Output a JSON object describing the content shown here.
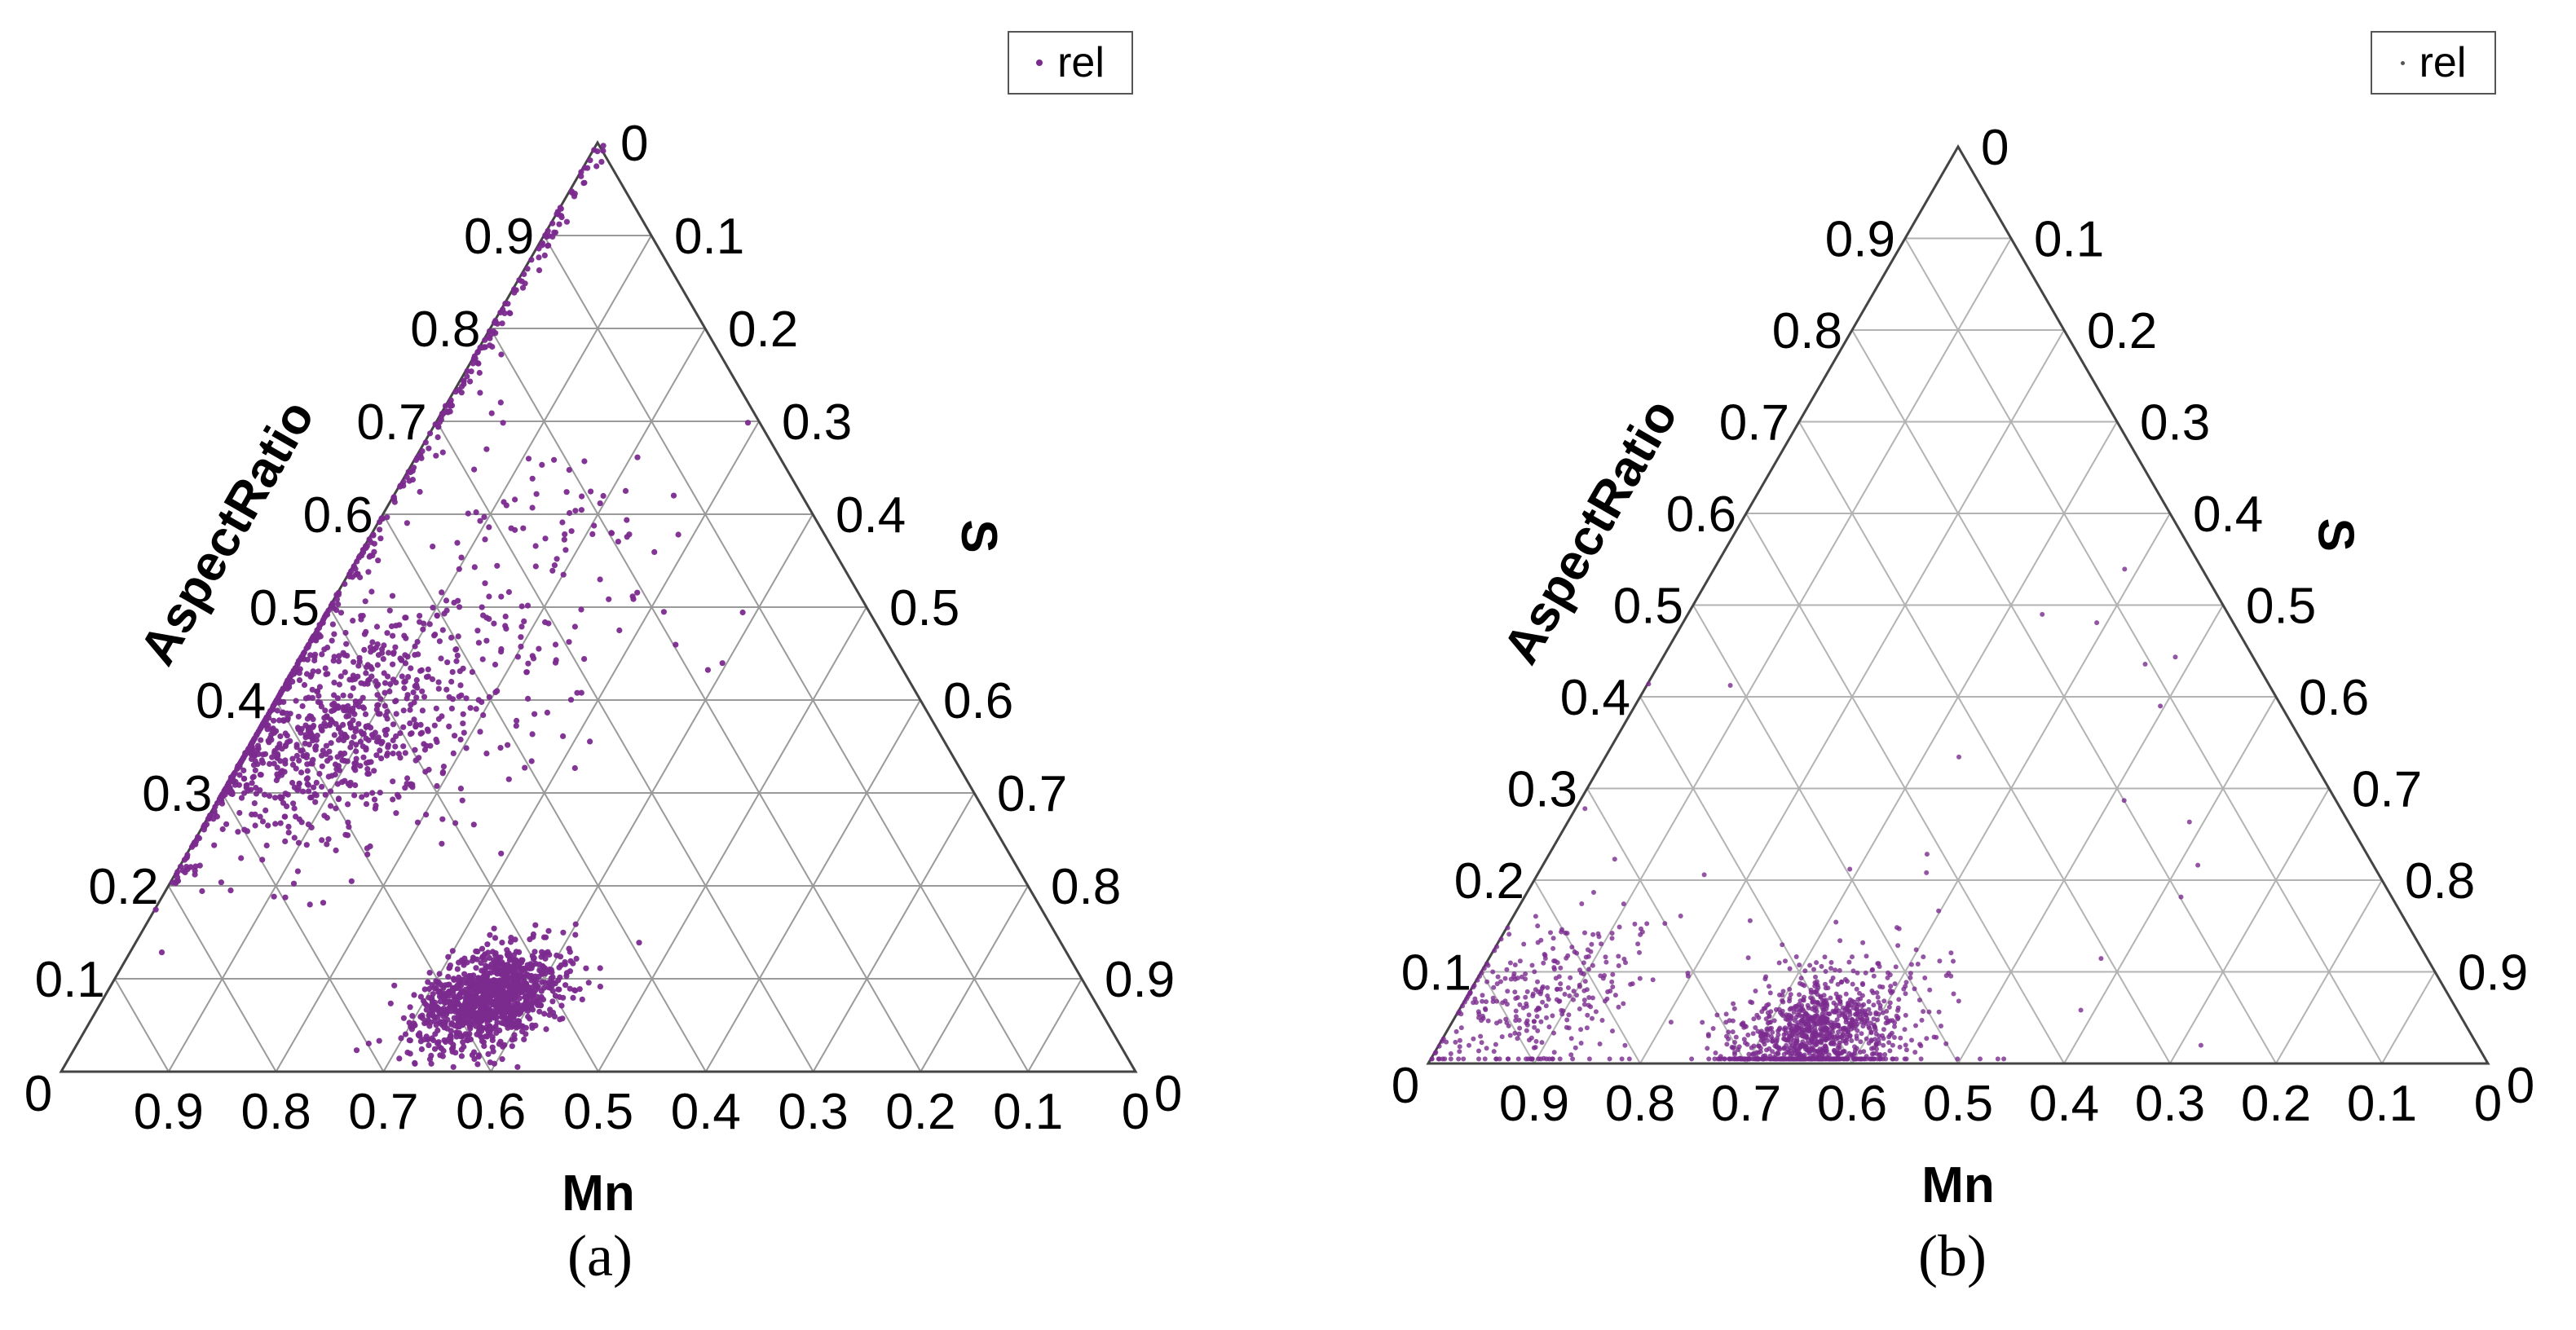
{
  "chart_data": [
    {
      "type": "scatter",
      "subtype": "ternary",
      "panel_label": "(a)",
      "legend": [
        "rel"
      ],
      "series": [
        {
          "name": "rel",
          "color": "#7b2a8e"
        }
      ],
      "axes": {
        "Mn": {
          "label": "Mn",
          "ticks": [
            "0.9",
            "0.8",
            "0.7",
            "0.6",
            "0.5",
            "0.4",
            "0.3",
            "0.2",
            "0.1",
            "0"
          ]
        },
        "S": {
          "label": "S",
          "ticks": [
            "0",
            "0.1",
            "0.2",
            "0.3",
            "0.4",
            "0.5",
            "0.6",
            "0.7",
            "0.8",
            "0.9"
          ]
        },
        "AspectRatio": {
          "label": "AspectRatio",
          "ticks": [
            "0",
            "0.1",
            "0.2",
            "0.3",
            "0.4",
            "0.5",
            "0.6",
            "0.7",
            "0.8",
            "0.9"
          ]
        }
      },
      "corner_labels": {
        "left": "0",
        "right": "0"
      },
      "grid": true,
      "clusters": [
        {
          "region": "along AspectRatio-Mn edge, S ~ 0",
          "AspectRatio_range": [
            0.2,
            1.0
          ],
          "density": "edge"
        },
        {
          "region": "upper-left band",
          "center": {
            "Mn": 0.58,
            "S": 0.06,
            "AspectRatio": 0.36
          },
          "spread": 0.06,
          "density": "high"
        },
        {
          "region": "diffuse interior",
          "center": {
            "Mn": 0.42,
            "S": 0.12,
            "AspectRatio": 0.46
          },
          "spread": 0.12,
          "density": "medium"
        },
        {
          "region": "dense core near bottom",
          "center": {
            "Mn": 0.56,
            "S": 0.36,
            "AspectRatio": 0.08
          },
          "spread": 0.03,
          "density": "very high"
        }
      ]
    },
    {
      "type": "scatter",
      "subtype": "ternary",
      "panel_label": "(b)",
      "legend": [
        "rel"
      ],
      "series": [
        {
          "name": "rel",
          "color": "#7b2a8e"
        }
      ],
      "axes": {
        "Mn": {
          "label": "Mn",
          "ticks": [
            "0.9",
            "0.8",
            "0.7",
            "0.6",
            "0.5",
            "0.4",
            "0.3",
            "0.2",
            "0.1",
            "0"
          ]
        },
        "S": {
          "label": "S",
          "ticks": [
            "0",
            "0.1",
            "0.2",
            "0.3",
            "0.4",
            "0.5",
            "0.6",
            "0.7",
            "0.8",
            "0.9"
          ]
        },
        "AspectRatio": {
          "label": "AspectRatio",
          "ticks": [
            "0",
            "0.1",
            "0.2",
            "0.3",
            "0.4",
            "0.5",
            "0.6",
            "0.7",
            "0.8",
            "0.9"
          ]
        }
      },
      "corner_labels": {
        "left": "0",
        "right": "0"
      },
      "grid": true,
      "clusters": [
        {
          "region": "dense core near bottom",
          "center": {
            "Mn": 0.62,
            "S": 0.35,
            "AspectRatio": 0.03
          },
          "spread": 0.04,
          "density": "very high"
        },
        {
          "region": "left bottom corner",
          "center": {
            "Mn": 0.86,
            "S": 0.07,
            "AspectRatio": 0.07
          },
          "spread": 0.05,
          "density": "medium"
        },
        {
          "region": "sparse interior",
          "center": {
            "Mn": 0.45,
            "S": 0.4,
            "AspectRatio": 0.15
          },
          "spread": 0.2,
          "density": "low"
        }
      ]
    }
  ]
}
